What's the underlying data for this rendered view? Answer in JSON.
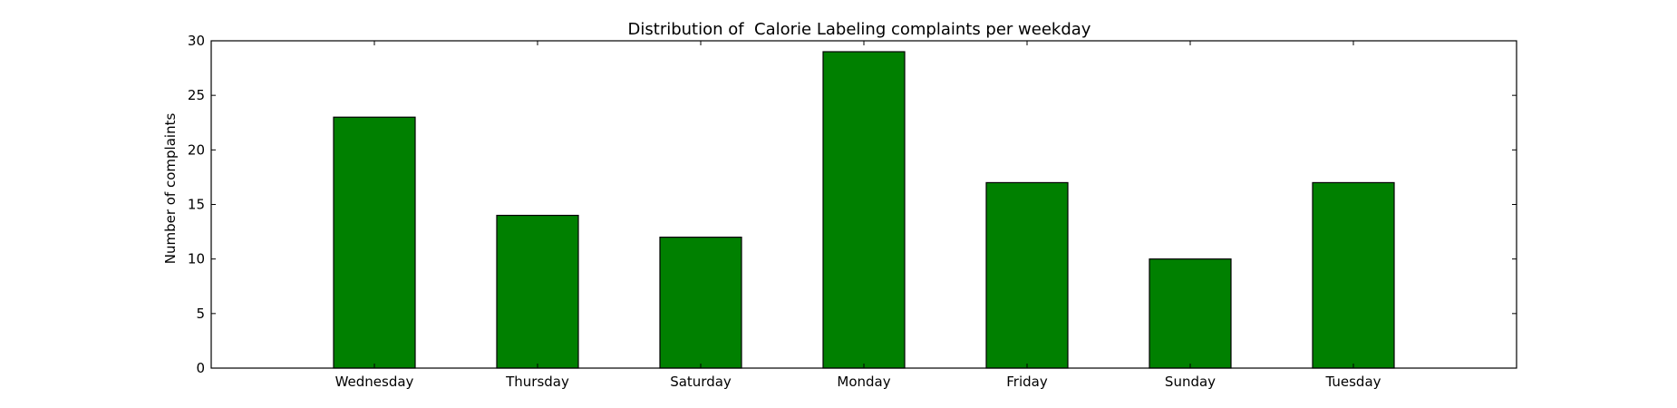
{
  "chart_data": {
    "type": "bar",
    "title": "Distribution of  Calorie Labeling complaints per weekday",
    "xlabel": "",
    "ylabel": "Number of complaints",
    "categories": [
      "Wednesday",
      "Thursday",
      "Saturday",
      "Monday",
      "Friday",
      "Sunday",
      "Tuesday"
    ],
    "values": [
      23,
      14,
      12,
      29,
      17,
      10,
      17
    ],
    "ylim": [
      0,
      30
    ],
    "yticks": [
      0,
      5,
      10,
      15,
      20,
      25,
      30
    ],
    "xlim": [
      -1,
      7
    ],
    "bar_width": 0.5,
    "bar_color": "#008000",
    "edge_color": "#000000",
    "grid": false,
    "legend": "none"
  }
}
